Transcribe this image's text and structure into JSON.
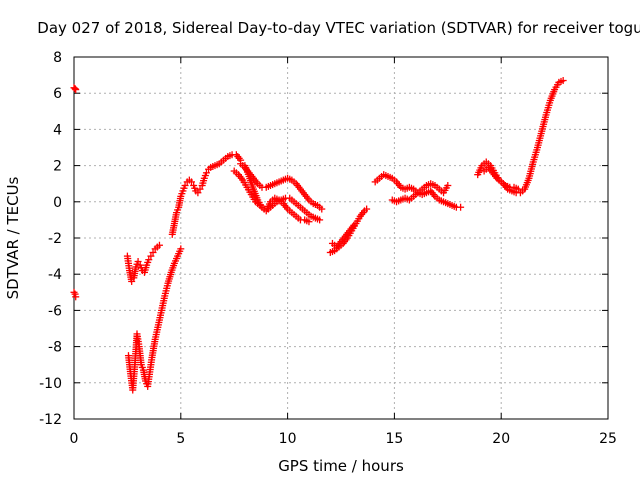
{
  "chart_data": {
    "type": "scatter",
    "title": "Day 027 of 2018, Sidereal Day-to-day VTEC variation (SDTVAR) for receiver togu",
    "xlabel": "GPS time / hours",
    "ylabel": "SDTVAR / TECUs",
    "xlim": [
      0,
      25
    ],
    "ylim": [
      -12,
      8
    ],
    "xticks": [
      0,
      5,
      10,
      15,
      20,
      25
    ],
    "yticks": [
      -12,
      -10,
      -8,
      -6,
      -4,
      -2,
      0,
      2,
      4,
      6,
      8
    ],
    "grid": true,
    "legend": "none",
    "marker": "plus",
    "color": "#ff0000",
    "series": [
      {
        "x": [
          0.0,
          0.05,
          0.08
        ],
        "y": [
          6.3,
          6.25,
          6.2
        ]
      },
      {
        "x": [
          0.0,
          0.05,
          0.08
        ],
        "y": [
          -5.0,
          -5.1,
          -5.25
        ]
      },
      {
        "x": [
          2.5,
          2.6,
          2.7,
          2.8,
          2.9,
          3.0,
          3.1,
          3.2,
          3.3,
          3.4,
          3.5,
          3.6,
          3.7,
          3.8,
          3.9,
          4.0
        ],
        "y": [
          -3.0,
          -3.8,
          -4.4,
          -4.2,
          -3.6,
          -3.3,
          -3.5,
          -3.8,
          -3.9,
          -3.5,
          -3.2,
          -3.0,
          -2.8,
          -2.6,
          -2.5,
          -2.4
        ]
      },
      {
        "x": [
          2.55,
          2.65,
          2.75,
          2.85,
          2.95,
          3.05,
          3.15,
          3.25,
          3.35,
          3.45,
          3.55,
          3.65,
          3.8,
          3.95,
          4.1,
          4.25,
          4.4,
          4.55,
          4.7,
          4.85,
          5.0
        ],
        "y": [
          -8.5,
          -9.5,
          -10.4,
          -9.0,
          -7.3,
          -8.0,
          -9.0,
          -9.3,
          -9.9,
          -10.2,
          -9.4,
          -8.6,
          -7.6,
          -6.8,
          -6.0,
          -5.2,
          -4.5,
          -3.9,
          -3.4,
          -3.0,
          -2.6
        ]
      },
      {
        "x": [
          4.6,
          4.7,
          4.8,
          4.9,
          5.0,
          5.1,
          5.2,
          5.3,
          5.4,
          5.5,
          5.6,
          5.7,
          5.8,
          5.9,
          6.0,
          6.1,
          6.2,
          6.3,
          6.4,
          6.6,
          6.8,
          7.0,
          7.2,
          7.4,
          7.6,
          7.8
        ],
        "y": [
          -1.8,
          -1.2,
          -0.6,
          -0.3,
          0.3,
          0.6,
          0.9,
          1.1,
          1.2,
          1.1,
          0.9,
          0.6,
          0.5,
          0.7,
          0.9,
          1.3,
          1.6,
          1.8,
          1.9,
          2.0,
          2.1,
          2.3,
          2.5,
          2.6,
          2.6,
          2.3
        ]
      },
      {
        "x": [
          7.5,
          7.7,
          7.9,
          8.1,
          8.3,
          8.5,
          8.7,
          8.9,
          9.1,
          9.3,
          9.5,
          9.7,
          9.9,
          10.1,
          10.3,
          10.5,
          10.7,
          10.9,
          11.1,
          11.3,
          11.5
        ],
        "y": [
          1.7,
          1.5,
          1.2,
          0.8,
          0.4,
          0.0,
          -0.2,
          -0.4,
          -0.4,
          -0.2,
          0.0,
          0.1,
          0.2,
          0.2,
          0.0,
          -0.2,
          -0.4,
          -0.6,
          -0.8,
          -0.9,
          -1.0
        ]
      },
      {
        "x": [
          7.8,
          8.0,
          8.2,
          8.4,
          8.6,
          8.8,
          9.0,
          9.2,
          9.4,
          9.6,
          9.8,
          10.0,
          10.2,
          10.4,
          10.6,
          10.8,
          11.0,
          11.2,
          11.4,
          11.6
        ],
        "y": [
          2.1,
          1.9,
          1.6,
          1.3,
          1.0,
          0.8,
          0.8,
          0.9,
          1.0,
          1.1,
          1.2,
          1.3,
          1.2,
          1.0,
          0.7,
          0.4,
          0.1,
          -0.1,
          -0.2,
          -0.4
        ]
      },
      {
        "x": [
          8.0,
          8.2,
          8.4,
          8.6,
          8.8,
          9.0,
          9.2,
          9.4,
          9.6,
          9.8,
          10.0,
          10.2,
          10.4,
          10.6,
          10.8,
          11.0
        ],
        "y": [
          2.0,
          1.4,
          0.7,
          0.1,
          -0.3,
          -0.5,
          0.0,
          0.2,
          0.1,
          -0.1,
          -0.4,
          -0.6,
          -0.8,
          -1.0,
          -1.0,
          -1.1
        ]
      },
      {
        "x": [
          12.0,
          12.2,
          12.4,
          12.6,
          12.8,
          13.0,
          13.2,
          13.4,
          13.6,
          13.7
        ],
        "y": [
          -2.8,
          -2.7,
          -2.5,
          -2.3,
          -2.0,
          -1.6,
          -1.2,
          -0.8,
          -0.5,
          -0.4
        ]
      },
      {
        "x": [
          12.1,
          12.3,
          12.5,
          12.7,
          12.9,
          13.1
        ],
        "y": [
          -2.3,
          -2.5,
          -2.2,
          -1.9,
          -1.6,
          -1.3
        ]
      },
      {
        "x": [
          14.1,
          14.3,
          14.5,
          14.7,
          14.9,
          15.1,
          15.3,
          15.5,
          15.7,
          15.9,
          16.1,
          16.3,
          16.5,
          16.7,
          16.9,
          17.1,
          17.3,
          17.5,
          17.7,
          17.9,
          18.1
        ],
        "y": [
          1.1,
          1.3,
          1.5,
          1.4,
          1.3,
          1.1,
          0.8,
          0.7,
          0.8,
          0.7,
          0.5,
          0.4,
          0.5,
          0.6,
          0.3,
          0.1,
          0.0,
          -0.1,
          -0.2,
          -0.3,
          -0.3
        ]
      },
      {
        "x": [
          14.9,
          15.1,
          15.3,
          15.5,
          15.7,
          15.9,
          16.1,
          16.3,
          16.5,
          16.7,
          16.9,
          17.1,
          17.3,
          17.5
        ],
        "y": [
          0.1,
          0.0,
          0.1,
          0.2,
          0.1,
          0.3,
          0.5,
          0.7,
          0.9,
          1.0,
          0.9,
          0.7,
          0.5,
          0.9
        ]
      },
      {
        "x": [
          18.9,
          19.1,
          19.3,
          19.5,
          19.7,
          19.9,
          20.1,
          20.3,
          20.5,
          20.7,
          20.9,
          21.1,
          21.3,
          21.5,
          21.7,
          21.9,
          22.1,
          22.3,
          22.5,
          22.7,
          22.9
        ],
        "y": [
          1.5,
          2.0,
          2.2,
          2.0,
          1.6,
          1.2,
          1.0,
          0.7,
          0.6,
          0.5,
          0.5,
          0.7,
          1.3,
          2.2,
          3.0,
          3.9,
          4.8,
          5.6,
          6.2,
          6.6,
          6.7
        ]
      },
      {
        "x": [
          19.2,
          19.4,
          19.6,
          19.8,
          20.0,
          20.2,
          20.4,
          20.6,
          20.8
        ],
        "y": [
          1.7,
          1.9,
          1.6,
          1.3,
          1.1,
          0.9,
          0.8,
          0.8,
          0.7
        ]
      }
    ]
  }
}
